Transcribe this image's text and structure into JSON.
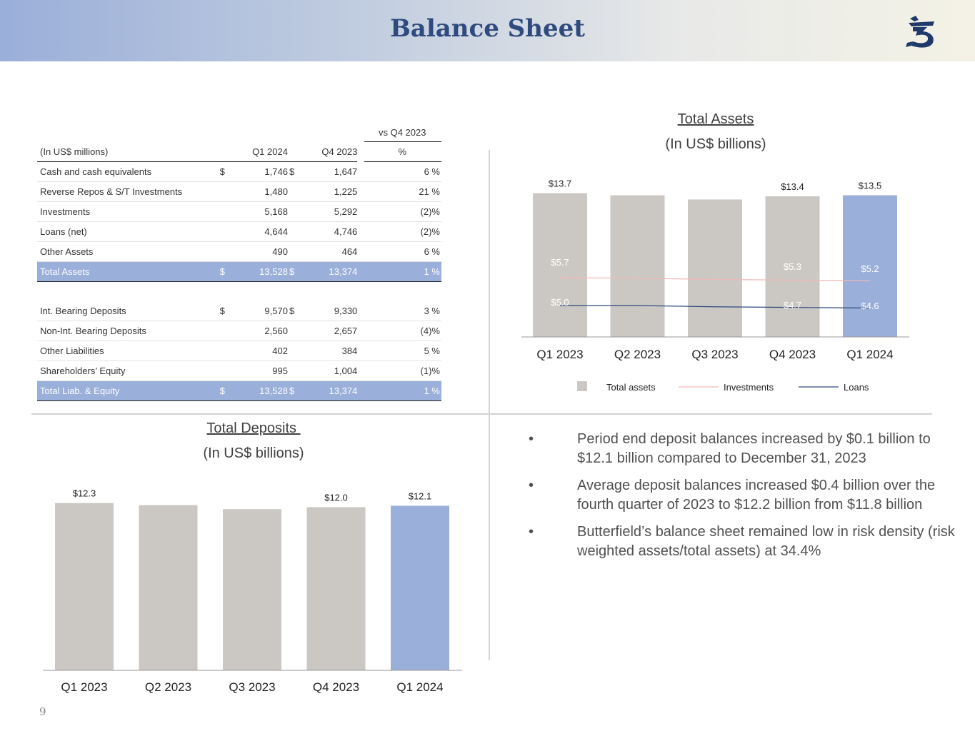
{
  "header": {
    "title": "Balance Sheet"
  },
  "table": {
    "vs_header": "vs Q4 2023",
    "columns": [
      "(In US$ millions)",
      "Q1 2024",
      "Q4 2023",
      "%"
    ],
    "rows": [
      {
        "label": "Cash and cash equivalents",
        "cur1": "$",
        "q1": "1,746",
        "cur2": "$",
        "q4": "1,647",
        "pct": "6 %"
      },
      {
        "label": "Reverse Repos & S/T Investments",
        "cur1": "",
        "q1": "1,480",
        "cur2": "",
        "q4": "1,225",
        "pct": "21 %"
      },
      {
        "label": "Investments",
        "cur1": "",
        "q1": "5,168",
        "cur2": "",
        "q4": "5,292",
        "pct": "(2)%"
      },
      {
        "label": "Loans (net)",
        "cur1": "",
        "q1": "4,644",
        "cur2": "",
        "q4": "4,746",
        "pct": "(2)%"
      },
      {
        "label": "Other Assets",
        "cur1": "",
        "q1": "490",
        "cur2": "",
        "q4": "464",
        "pct": "6 %"
      },
      {
        "label": "Total Assets",
        "cur1": "$",
        "q1": "13,528",
        "cur2": "$",
        "q4": "13,374",
        "pct": "1 %"
      },
      {
        "label": "Int. Bearing Deposits",
        "cur1": "$",
        "q1": "9,570",
        "cur2": "$",
        "q4": "9,330",
        "pct": "3 %"
      },
      {
        "label": "Non-Int. Bearing Deposits",
        "cur1": "",
        "q1": "2,560",
        "cur2": "",
        "q4": "2,657",
        "pct": "(4)%"
      },
      {
        "label": "Other Liabilities",
        "cur1": "",
        "q1": "402",
        "cur2": "",
        "q4": "384",
        "pct": "5 %"
      },
      {
        "label": "Shareholders’ Equity",
        "cur1": "",
        "q1": "995",
        "cur2": "",
        "q4": "1,004",
        "pct": "(1)%"
      },
      {
        "label": "Total Liab. & Equity",
        "cur1": "$",
        "q1": "13,528",
        "cur2": "$",
        "q4": "13,374",
        "pct": "1 %"
      }
    ]
  },
  "assets_chart": {
    "title": "Total Assets",
    "subtitle": "(In US$ billions)",
    "legend": [
      "Total assets",
      "Investments",
      "Loans"
    ]
  },
  "deposits_chart": {
    "title": "Total Deposits ",
    "subtitle": "(In US$ billions)"
  },
  "chart_data": [
    {
      "type": "bar",
      "title": "Total Assets",
      "subtitle": "(In US$ billions)",
      "categories": [
        "Q1 2023",
        "Q2 2023",
        "Q3 2023",
        "Q4 2023",
        "Q1 2024"
      ],
      "series": [
        {
          "name": "Total assets",
          "type": "bar",
          "values": [
            13.7,
            13.5,
            13.1,
            13.4,
            13.5
          ],
          "labels": [
            "$13.7",
            "",
            "",
            "$13.4",
            "$13.5"
          ],
          "colors": [
            "#cbc8c3",
            "#cbc8c3",
            "#cbc8c3",
            "#cbc8c3",
            "#9aafd9"
          ]
        },
        {
          "name": "Investments",
          "type": "line",
          "values": [
            5.7,
            5.6,
            5.4,
            5.3,
            5.2
          ],
          "labels": [
            "$5.7",
            "",
            "",
            "$5.3",
            "$5.2"
          ],
          "color": "#f2b8b8"
        },
        {
          "name": "Loans",
          "type": "line",
          "values": [
            5.0,
            5.0,
            4.8,
            4.7,
            4.6
          ],
          "labels": [
            "$5.0",
            "",
            "",
            "$4.7",
            "$4.6"
          ],
          "color": "#2e4a7e"
        }
      ],
      "ylim": [
        0,
        15
      ],
      "legend_position": "bottom",
      "grid": false
    },
    {
      "type": "bar",
      "title": "Total Deposits ",
      "subtitle": "(In US$ billions)",
      "categories": [
        "Q1 2023",
        "Q2 2023",
        "Q3 2023",
        "Q4 2023",
        "Q1 2024"
      ],
      "values": [
        12.3,
        12.15,
        11.85,
        12.0,
        12.1
      ],
      "labels": [
        "$12.3",
        "",
        "",
        "$12.0",
        "$12.1"
      ],
      "colors": [
        "#cbc8c3",
        "#cbc8c3",
        "#cbc8c3",
        "#cbc8c3",
        "#9aafd9"
      ],
      "ylim": [
        0,
        13
      ],
      "grid": false
    }
  ],
  "bullets": [
    "Period end deposit balances increased by $0.1 billion to $12.1 billion compared to December 31, 2023",
    "Average deposit balances increased $0.4 billion over the fourth quarter of 2023 to $12.2 billion from $11.8 billion",
    "Butterfield’s balance sheet remained low in risk density (risk weighted assets/total assets) at 34.4%"
  ],
  "bullet_symbol": "•",
  "page_number": "9",
  "colors": {
    "accent": "#9aafd9",
    "navy": "#2e4a7e",
    "grey_bar": "#cbc8c3",
    "investments_line": "#f2b8b8"
  },
  "logo_icon": "butterfield-logo"
}
